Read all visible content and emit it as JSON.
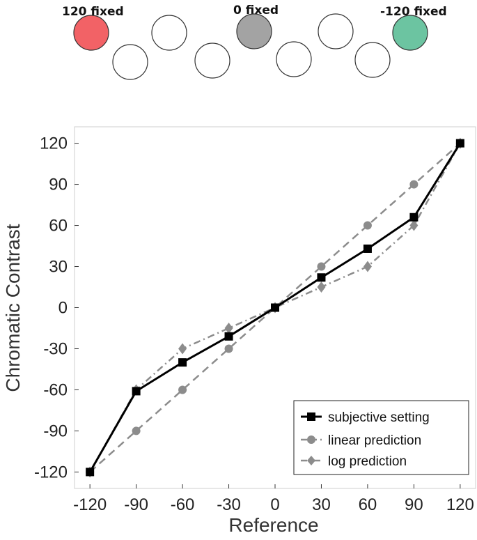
{
  "top_labels": {
    "left": "120 fixed",
    "middle": "0 fixed",
    "right": "-120 fixed"
  },
  "colors": {
    "red_circle": "#f26266",
    "gray_circle": "#a3a3a3",
    "green_circle": "#6cc4a1",
    "subjective": "#000000",
    "linear": "#8c8c8c",
    "log": "#8c8c8c"
  },
  "chart_data": {
    "type": "line",
    "xlabel": "Reference",
    "ylabel": "Chromatic Contrast",
    "xlim": [
      -130,
      130
    ],
    "ylim": [
      -132,
      132
    ],
    "xticks": [
      -120,
      -90,
      -60,
      -30,
      0,
      30,
      60,
      90,
      120
    ],
    "yticks": [
      -120,
      -90,
      -60,
      -30,
      0,
      30,
      60,
      90,
      120
    ],
    "x": [
      -120,
      -90,
      -60,
      -30,
      0,
      30,
      60,
      90,
      120
    ],
    "series": [
      {
        "name": "subjective setting",
        "values": [
          -120,
          -61,
          -40,
          -21,
          0,
          22,
          43,
          66,
          120
        ]
      },
      {
        "name": "linear prediction",
        "values": [
          -120,
          -90,
          -60,
          -30,
          0,
          30,
          60,
          90,
          120
        ]
      },
      {
        "name": "log prediction",
        "values": [
          -120,
          -60,
          -30,
          -15,
          0,
          15,
          30,
          60,
          120
        ]
      }
    ],
    "legend_position": "bottom-right",
    "grid": false
  }
}
